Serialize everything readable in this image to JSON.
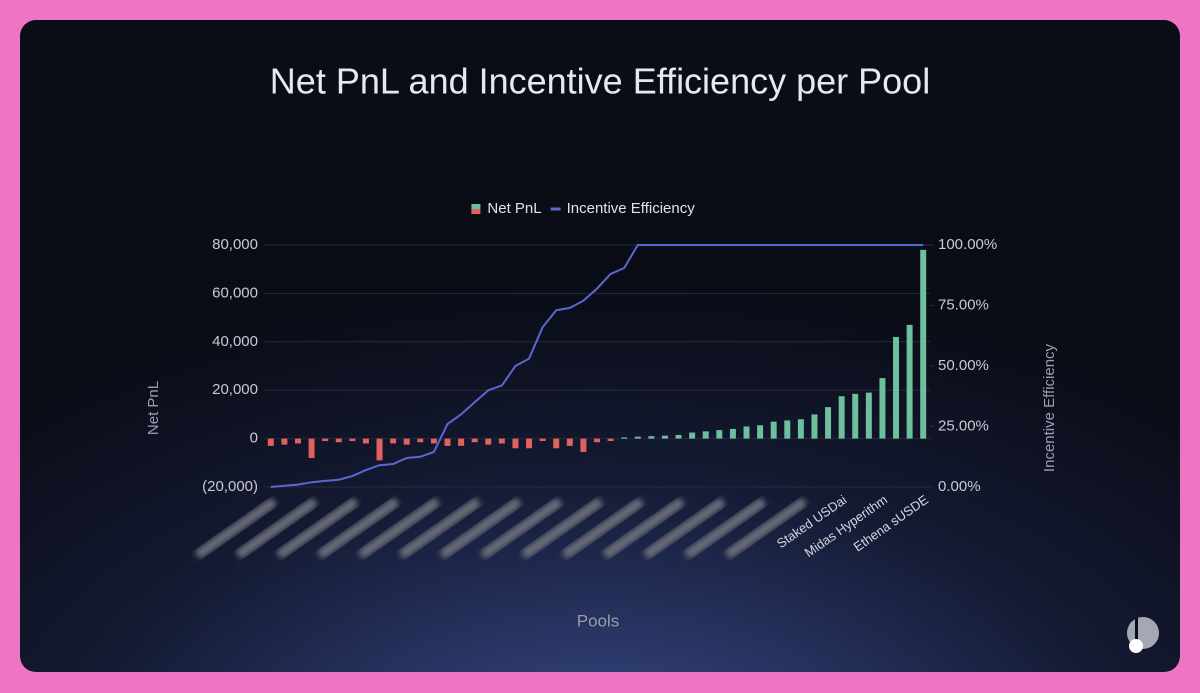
{
  "chart_data": {
    "type": "bar-line",
    "title": "Net PnL and Incentive Efficiency per Pool",
    "x_label": "Pools",
    "y_label": "Net PnL",
    "y2_label": "Incentive Efficiency",
    "categories": [
      null,
      null,
      null,
      null,
      null,
      null,
      null,
      null,
      null,
      null,
      null,
      null,
      null,
      null,
      null,
      null,
      null,
      null,
      null,
      null,
      null,
      null,
      null,
      null,
      null,
      null,
      null,
      null,
      null,
      null,
      null,
      null,
      null,
      null,
      null,
      null,
      null,
      null,
      null,
      null,
      null,
      null,
      "Staked USDai",
      null,
      null,
      "Midas Hyperithm",
      null,
      null,
      "Ethena sUSDE"
    ],
    "series": [
      {
        "name": "Net PnL",
        "type": "bar",
        "color": "#6dbf9d",
        "negative_color": "#e0625f",
        "values": [
          -3000,
          -2500,
          -2000,
          -8000,
          -1000,
          -1500,
          -1000,
          -2000,
          -9000,
          -2000,
          -2500,
          -1500,
          -2000,
          -3000,
          -3000,
          -1500,
          -2500,
          -2000,
          -4000,
          -4000,
          -1000,
          -4000,
          -3000,
          -5500,
          -1500,
          -1000,
          500,
          800,
          1000,
          1200,
          1500,
          2500,
          3000,
          3500,
          4000,
          5000,
          5500,
          7000,
          7500,
          8000,
          10000,
          13000,
          17500,
          18500,
          19000,
          25000,
          42000,
          47000,
          78000
        ]
      },
      {
        "name": "Incentive Efficiency",
        "type": "line",
        "axis": "y2",
        "color": "#5a68d0",
        "values": [
          0,
          0.5,
          1,
          2,
          2.5,
          3,
          4.5,
          7,
          9,
          9.5,
          12,
          12.5,
          14.5,
          26,
          30,
          35,
          40,
          42,
          50,
          53,
          66,
          73,
          74,
          77,
          82,
          88,
          90.5,
          100,
          100,
          100,
          100,
          100,
          100,
          100,
          100,
          100,
          100,
          100,
          100,
          100,
          100,
          100,
          100,
          100,
          100,
          100,
          100,
          100,
          100
        ]
      }
    ],
    "ylim": [
      -20000,
      80000
    ],
    "yticks": [
      {
        "value": -20000,
        "label": "(20,000)"
      },
      0,
      {
        "value": 20000,
        "label": "20,000"
      },
      {
        "value": 40000,
        "label": "40,000"
      },
      {
        "value": 60000,
        "label": "60,000"
      },
      {
        "value": 80000,
        "label": "80,000"
      }
    ],
    "y2lim": [
      0,
      100
    ],
    "y2ticks": [
      {
        "value": 0,
        "label": "0.00%"
      },
      {
        "value": 25,
        "label": "25.00%"
      },
      {
        "value": 50,
        "label": "50.00%"
      },
      {
        "value": 75,
        "label": "75.00%"
      },
      {
        "value": 100,
        "label": "100.00%"
      }
    ],
    "grid": true,
    "legend": "top"
  }
}
